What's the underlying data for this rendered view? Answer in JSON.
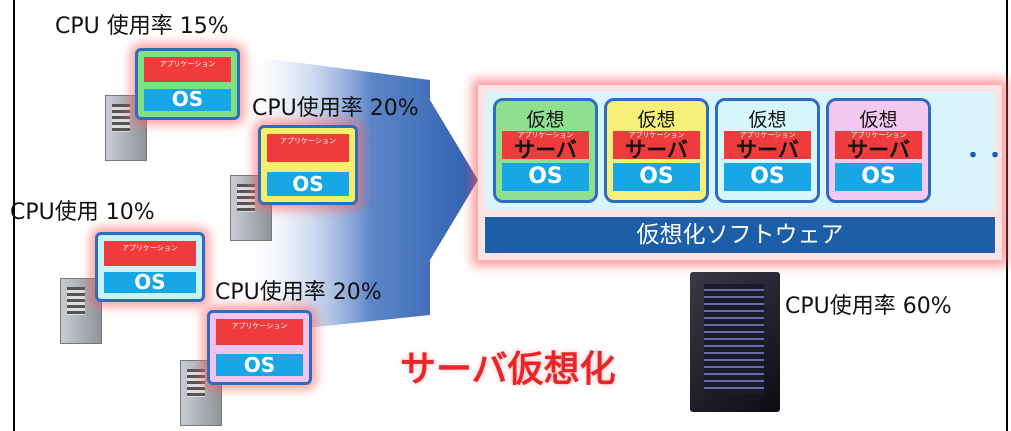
{
  "physical_servers": [
    {
      "cpu_label": "CPU 使用率 15%",
      "app": "アプリケーション",
      "os": "OS"
    },
    {
      "cpu_label": "CPU使用率 20%",
      "app": "アプリケーション",
      "os": "OS"
    },
    {
      "cpu_label": "CPU使用 10%",
      "app": "アプリケーション",
      "os": "OS"
    },
    {
      "cpu_label": "CPU使用率 20%",
      "app": "アプリケーション",
      "os": "OS"
    }
  ],
  "virtual_servers": [
    {
      "title": "仮想",
      "subtitle": "サーバ",
      "app": "アプリケーション",
      "os": "OS"
    },
    {
      "title": "仮想",
      "subtitle": "サーバ",
      "app": "アプリケーション",
      "os": "OS"
    },
    {
      "title": "仮想",
      "subtitle": "サーバ",
      "app": "アプリケーション",
      "os": "OS"
    },
    {
      "title": "仮想",
      "subtitle": "サーバ",
      "app": "アプリケーション",
      "os": "OS"
    }
  ],
  "ellipsis": "・・",
  "virtualization_software": "仮想化ソフトウェア",
  "host_cpu_label": "CPU使用率 60%",
  "caption": "サーバ仮想化"
}
